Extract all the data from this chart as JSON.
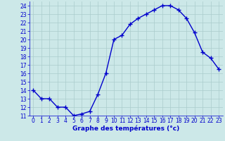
{
  "hours": [
    0,
    1,
    2,
    3,
    4,
    5,
    6,
    7,
    8,
    9,
    10,
    11,
    12,
    13,
    14,
    15,
    16,
    17,
    18,
    19,
    20,
    21,
    22,
    23
  ],
  "temperatures": [
    14.0,
    13.0,
    13.0,
    12.0,
    12.0,
    11.0,
    11.2,
    11.5,
    13.5,
    16.0,
    20.0,
    20.5,
    21.8,
    22.5,
    23.0,
    23.5,
    24.0,
    24.0,
    23.5,
    22.5,
    20.8,
    18.5,
    17.8,
    16.5
  ],
  "line_color": "#0000cc",
  "marker": "+",
  "marker_size": 4,
  "marker_lw": 1.0,
  "bg_color": "#cce8e8",
  "grid_color": "#aacccc",
  "xlabel": "Graphe des températures (°c)",
  "xlabel_color": "#0000cc",
  "xlabel_fontsize": 6.5,
  "tick_color": "#0000cc",
  "tick_fontsize": 5.5,
  "ylim": [
    11,
    24.5
  ],
  "yticks": [
    11,
    12,
    13,
    14,
    15,
    16,
    17,
    18,
    19,
    20,
    21,
    22,
    23,
    24
  ],
  "xlim": [
    -0.5,
    23.5
  ],
  "xticks": [
    0,
    1,
    2,
    3,
    4,
    5,
    6,
    7,
    8,
    9,
    10,
    11,
    12,
    13,
    14,
    15,
    16,
    17,
    18,
    19,
    20,
    21,
    22,
    23
  ]
}
